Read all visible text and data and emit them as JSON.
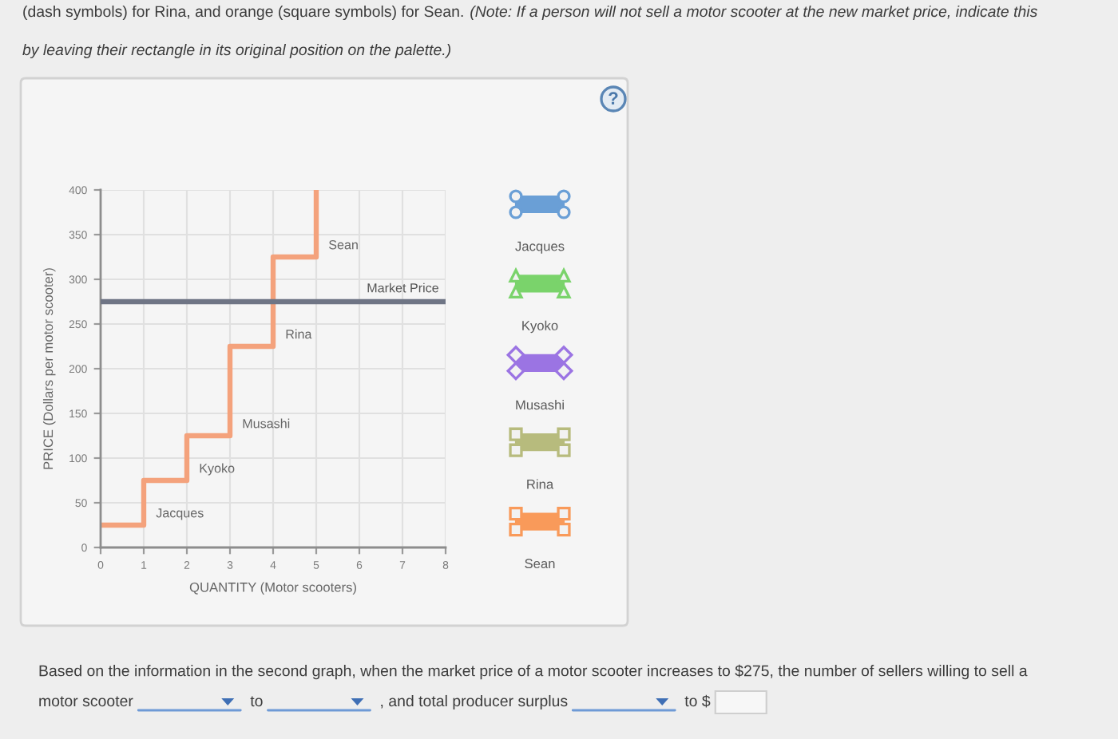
{
  "chart_data": {
    "type": "step",
    "xlabel": "QUANTITY (Motor scooters)",
    "ylabel": "PRICE (Dollars per motor scooter)",
    "x": [
      0,
      1,
      2,
      3,
      4,
      5
    ],
    "series": [
      {
        "color": "#f4a27c",
        "values": [
          25,
          75,
          125,
          225,
          325,
          400
        ]
      }
    ],
    "xlim": [
      0,
      8
    ],
    "xticks": [
      0,
      1,
      2,
      3,
      4,
      5,
      6,
      7,
      8
    ],
    "ylim": [
      0,
      400
    ],
    "yticks": [
      0,
      50,
      100,
      150,
      200,
      250,
      300,
      350,
      400
    ],
    "grid": true,
    "ref_lines": [
      {
        "axis": "y",
        "value": 275,
        "label": "Market Price",
        "color": "#6f7585"
      }
    ],
    "annotations": [
      "(dash symbols) for Rina, and orange (square symbols) for Sean.",
      "(Note: If a person will not sell a motor scooter at the new market price, indicate this",
      "by leaving their rectangle in its original position on the palette.)",
      "?",
      "Jacques",
      "Kyoko",
      "Musashi",
      "Rina",
      "Sean",
      "Based on the information in the second graph, when the market price of a motor scooter increases to $275, the number of sellers willing to sell a",
      "motor scooter",
      "to",
      ", and total producer surplus",
      "to $",
      {
        "text": "Jacques",
        "x": 1,
        "y": 25
      },
      {
        "text": "Kyoko",
        "x": 2,
        "y": 75
      },
      {
        "text": "Musashi",
        "x": 3,
        "y": 125
      },
      {
        "text": "Rina",
        "x": 4,
        "y": 225
      },
      {
        "text": "Sean",
        "x": 5,
        "y": 325
      }
    ]
  }
}
